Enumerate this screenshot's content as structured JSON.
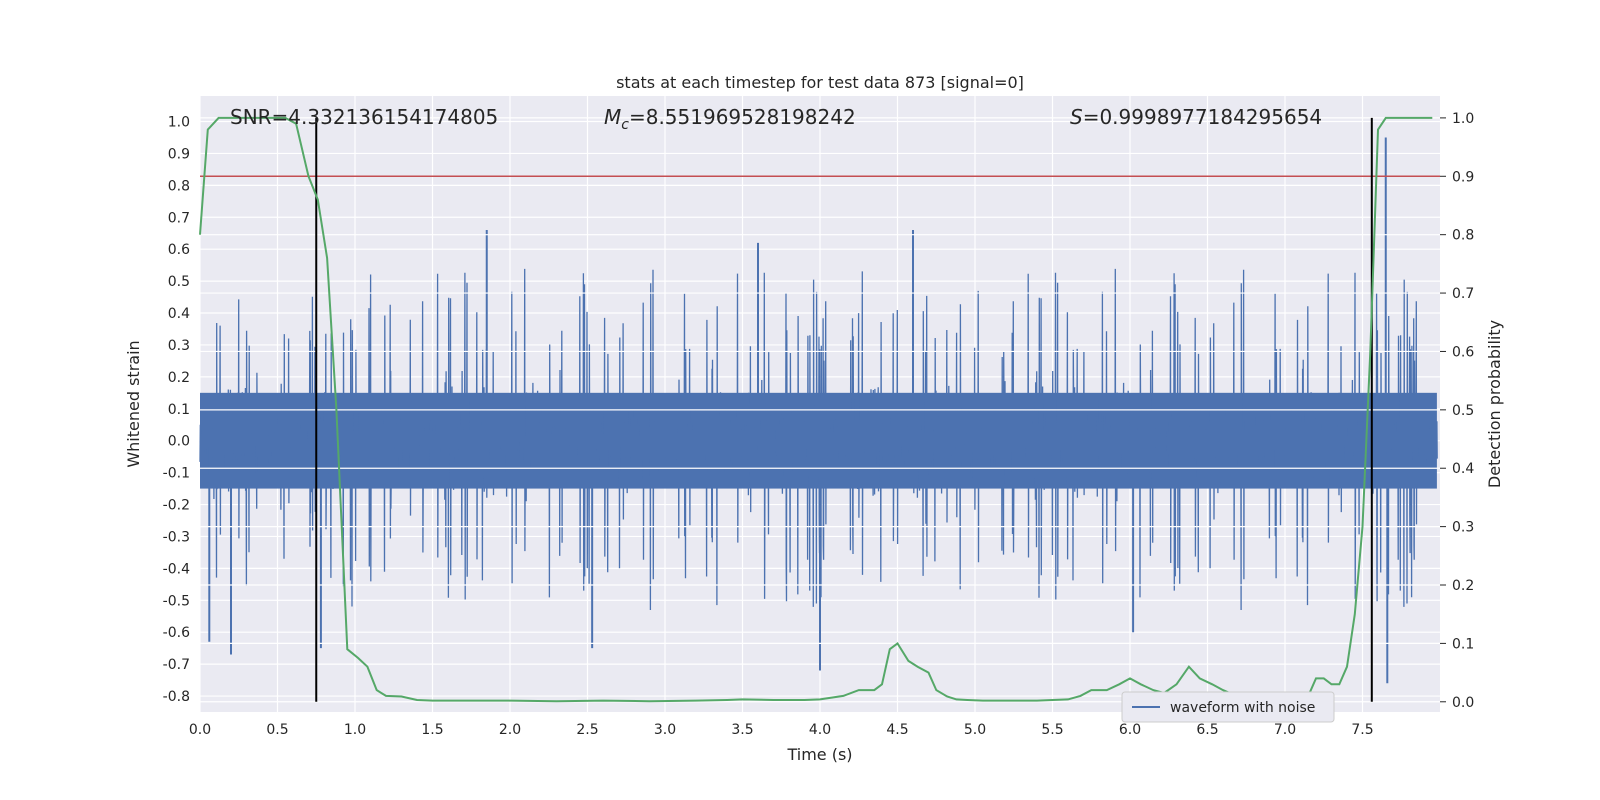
{
  "chart_data": {
    "type": "line",
    "title": "stats at each timestep for test data 873 [signal=0]",
    "xlabel": "Time (s)",
    "ylabel": "Whitened strain",
    "y2label": "Detection probability",
    "xlim": [
      0.0,
      8.0
    ],
    "ylim": [
      -0.85,
      1.08
    ],
    "y2lim": [
      -0.0175,
      1.0375
    ],
    "xticks": [
      "0.0",
      "0.5",
      "1.0",
      "1.5",
      "2.0",
      "2.5",
      "3.0",
      "3.5",
      "4.0",
      "4.5",
      "5.0",
      "5.5",
      "6.0",
      "6.5",
      "7.0",
      "7.5"
    ],
    "yticks": [
      "-0.8",
      "-0.7",
      "-0.6",
      "-0.5",
      "-0.4",
      "-0.3",
      "-0.2",
      "-0.1",
      "0.0",
      "0.1",
      "0.2",
      "0.3",
      "0.4",
      "0.5",
      "0.6",
      "0.7",
      "0.8",
      "0.9",
      "1.0"
    ],
    "y2ticks": [
      "0.0",
      "0.1",
      "0.2",
      "0.3",
      "0.4",
      "0.5",
      "0.6",
      "0.7",
      "0.8",
      "0.9",
      "1.0"
    ],
    "grid": true,
    "legend": {
      "position": "lower-right",
      "entries": [
        "waveform with noise"
      ]
    },
    "annotations": {
      "snr": "SNR=4.332136154174805",
      "mc_symbol": "M",
      "mc_subscript": "c",
      "mc_value": "=8.551969528198242",
      "s_symbol": "S",
      "s_value": "=0.9998977184295654"
    },
    "threshold_probability": 0.9,
    "vertical_lines_x": [
      0.75,
      7.56
    ],
    "colors": {
      "waveform": "#4c72b0",
      "probability": "#55a868",
      "threshold": "#c44e52",
      "vlines": "#000000",
      "background": "#eaeaf2",
      "grid": "#ffffff"
    },
    "series": [
      {
        "name": "waveform with noise",
        "axis": "left",
        "style": "dense noise, amplitude envelope about ±0.3 with spikes to about ±0.65",
        "spikes": [
          {
            "x": 0.06,
            "y": -0.63
          },
          {
            "x": 0.2,
            "y": -0.67
          },
          {
            "x": 0.78,
            "y": -0.65
          },
          {
            "x": 1.85,
            "y": 0.66
          },
          {
            "x": 2.53,
            "y": -0.65
          },
          {
            "x": 3.6,
            "y": 0.62
          },
          {
            "x": 4.0,
            "y": -0.72
          },
          {
            "x": 4.6,
            "y": 0.66
          },
          {
            "x": 6.02,
            "y": -0.6
          },
          {
            "x": 7.65,
            "y": 0.95
          },
          {
            "x": 7.66,
            "y": -0.76
          }
        ]
      },
      {
        "name": "",
        "axis": "right",
        "x": [
          0.0,
          0.05,
          0.12,
          0.2,
          0.3,
          0.45,
          0.55,
          0.62,
          0.7,
          0.76,
          0.82,
          0.88,
          0.95,
          1.02,
          1.08,
          1.14,
          1.2,
          1.3,
          1.4,
          1.5,
          1.7,
          2.0,
          2.3,
          2.6,
          2.9,
          3.2,
          3.4,
          3.5,
          3.7,
          3.9,
          4.0,
          4.15,
          4.25,
          4.35,
          4.4,
          4.45,
          4.5,
          4.57,
          4.63,
          4.7,
          4.75,
          4.82,
          4.88,
          4.95,
          5.05,
          5.2,
          5.4,
          5.6,
          5.68,
          5.75,
          5.85,
          5.93,
          6.0,
          6.07,
          6.15,
          6.22,
          6.3,
          6.38,
          6.45,
          6.53,
          6.6,
          6.67,
          6.73,
          6.8,
          6.9,
          7.0,
          7.08,
          7.15,
          7.2,
          7.25,
          7.3,
          7.35,
          7.4,
          7.45,
          7.5,
          7.55,
          7.6,
          7.65,
          7.7,
          7.95
        ],
        "values": [
          0.8,
          0.98,
          1.0,
          1.0,
          1.0,
          1.0,
          1.0,
          0.99,
          0.9,
          0.86,
          0.76,
          0.5,
          0.09,
          0.075,
          0.06,
          0.02,
          0.01,
          0.009,
          0.003,
          0.002,
          0.002,
          0.002,
          0.001,
          0.002,
          0.001,
          0.002,
          0.003,
          0.004,
          0.003,
          0.003,
          0.004,
          0.01,
          0.02,
          0.02,
          0.03,
          0.09,
          0.1,
          0.07,
          0.06,
          0.05,
          0.02,
          0.009,
          0.004,
          0.003,
          0.002,
          0.002,
          0.002,
          0.004,
          0.01,
          0.02,
          0.02,
          0.03,
          0.04,
          0.03,
          0.02,
          0.015,
          0.03,
          0.06,
          0.04,
          0.03,
          0.02,
          0.012,
          0.006,
          0.004,
          0.004,
          0.004,
          0.005,
          0.01,
          0.04,
          0.04,
          0.03,
          0.03,
          0.06,
          0.15,
          0.3,
          0.6,
          0.98,
          1.0,
          1.0,
          1.0
        ]
      }
    ]
  }
}
